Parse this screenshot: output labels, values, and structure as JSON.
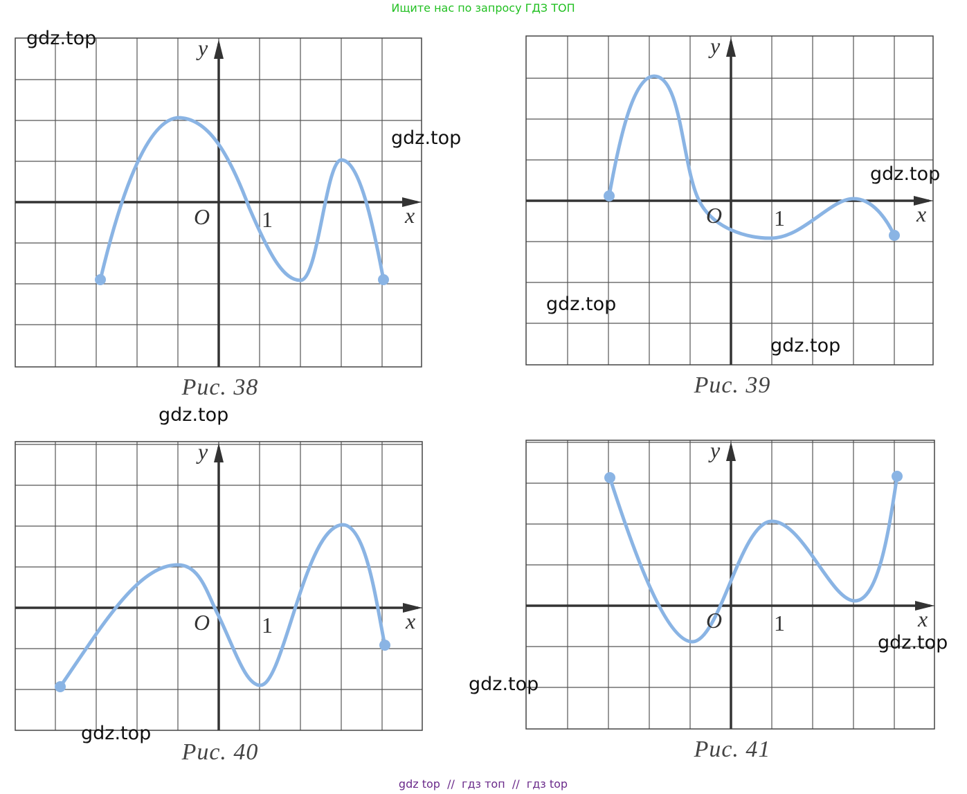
{
  "header": "Ищите нас по запросу ГДЗ ТОП",
  "figures": [
    {
      "caption": "Рис. 38",
      "x_label": "x",
      "y_label": "y",
      "origin_label": "O",
      "unit_label": "1"
    },
    {
      "caption": "Рис. 39",
      "x_label": "x",
      "y_label": "y",
      "origin_label": "O",
      "unit_label": "1"
    },
    {
      "caption": "Рис. 40",
      "x_label": "x",
      "y_label": "y",
      "origin_label": "O",
      "unit_label": "1"
    },
    {
      "caption": "Рис. 41",
      "x_label": "x",
      "y_label": "y",
      "origin_label": "O",
      "unit_label": "1"
    }
  ],
  "watermarks": [
    "gdz.top",
    "gdz.top",
    "gdz.top",
    "gdz.top",
    "gdz.top",
    "gdz.top",
    "gdz.top",
    "gdz.top",
    "gdz.top"
  ],
  "footer": "gdz top  //  гдз топ  //  гдз top"
}
